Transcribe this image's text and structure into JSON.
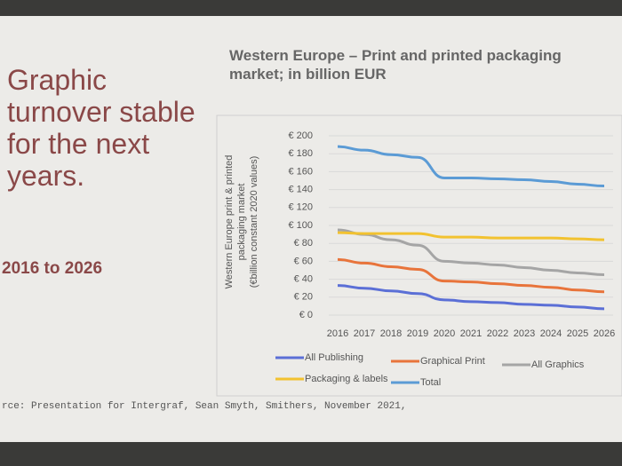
{
  "slide": {
    "heading": "Graphic turnover stable for the next years.",
    "period": "2016 to 2026",
    "source": "rce: Presentation for Intergraf, Sean Smyth, Smithers, November 2021,"
  },
  "chart_data": {
    "type": "line",
    "title": "Western Europe – Print and printed packaging market; in billion EUR",
    "y_label": [
      "Western Europe print & printed",
      "packaging market",
      "(€billion constant 2020 values)"
    ],
    "categories": [
      "2016",
      "2017",
      "2018",
      "2019",
      "2020",
      "2021",
      "2022",
      "2023",
      "2024",
      "2025",
      "2026"
    ],
    "ylim": [
      0,
      200
    ],
    "yticks": [
      {
        "value": 0,
        "label": "€ 0"
      },
      {
        "value": 20,
        "label": "€ 20"
      },
      {
        "value": 40,
        "label": "€ 40"
      },
      {
        "value": 60,
        "label": "€ 60"
      },
      {
        "value": 80,
        "label": "€ 80"
      },
      {
        "value": 100,
        "label": "€ 100"
      },
      {
        "value": 120,
        "label": "€ 120"
      },
      {
        "value": 140,
        "label": "€ 140"
      },
      {
        "value": 160,
        "label": "€ 160"
      },
      {
        "value": 180,
        "label": "€ 180"
      },
      {
        "value": 200,
        "label": "€ 200"
      }
    ],
    "grid": true,
    "series": [
      {
        "name": "All Publishing",
        "color": "#5b6fd6",
        "values": [
          33,
          30,
          27,
          24,
          17,
          15,
          14,
          12,
          11,
          9,
          7
        ]
      },
      {
        "name": "Graphical Print",
        "color": "#e8743b",
        "values": [
          62,
          58,
          54,
          51,
          38,
          37,
          35,
          33,
          31,
          28,
          26
        ]
      },
      {
        "name": "All Graphics",
        "color": "#a5a5a5",
        "values": [
          95,
          90,
          84,
          78,
          60,
          58,
          56,
          53,
          50,
          47,
          45
        ]
      },
      {
        "name": "Packaging & labels",
        "color": "#f2c230",
        "values": [
          92,
          91,
          91,
          91,
          87,
          87,
          86,
          86,
          86,
          85,
          84
        ]
      },
      {
        "name": "Total",
        "color": "#5b9bd5",
        "values": [
          188,
          184,
          179,
          176,
          153,
          153,
          152,
          151,
          149,
          146,
          144
        ]
      }
    ]
  }
}
